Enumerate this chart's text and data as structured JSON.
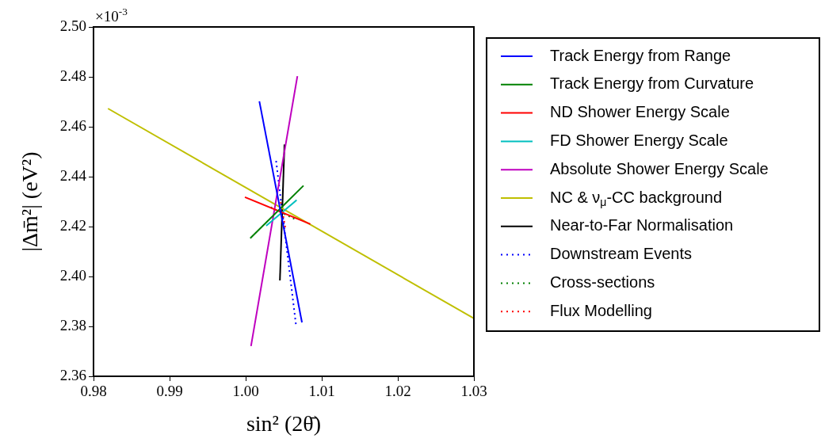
{
  "chart_data": {
    "type": "line",
    "xlabel": "sin² (2θ̄)",
    "ylabel": "|Δm̄²| (eV²)",
    "annotations": [
      "×10$^{-3}$"
    ],
    "xlim": [
      0.98,
      1.03
    ],
    "xticks": [
      {
        "value": 0.98,
        "label": "0.98"
      },
      {
        "value": 0.99,
        "label": "0.99"
      },
      {
        "value": 1.0,
        "label": "1.00"
      },
      {
        "value": 1.01,
        "label": "1.01"
      },
      {
        "value": 1.02,
        "label": "1.02"
      },
      {
        "value": 1.03,
        "label": "1.03"
      }
    ],
    "ylim": [
      2.36,
      2.5
    ],
    "yticks": [
      {
        "value": 2.36,
        "label": "2.36"
      },
      {
        "value": 2.38,
        "label": "2.38"
      },
      {
        "value": 2.4,
        "label": "2.40"
      },
      {
        "value": 2.42,
        "label": "2.42"
      },
      {
        "value": 2.44,
        "label": "2.44"
      },
      {
        "value": 2.46,
        "label": "2.46"
      },
      {
        "value": 2.48,
        "label": "2.48"
      },
      {
        "value": 2.5,
        "label": "2.50"
      }
    ],
    "grid": false,
    "legend": "right",
    "marker": "none",
    "series": [
      {
        "name": "Track Energy from Range",
        "color": "#0000ff",
        "line_style": "solid",
        "x": [
          1.0018,
          1.0074
        ],
        "values": [
          2.4702,
          2.3816
        ]
      },
      {
        "name": "Track Energy from Curvature",
        "color": "#008000",
        "line_style": "solid",
        "x": [
          1.0006,
          1.0076
        ],
        "values": [
          2.4153,
          2.4364
        ]
      },
      {
        "name": "ND Shower Energy Scale",
        "color": "#ff0000",
        "line_style": "solid",
        "x": [
          0.9999,
          1.0085
        ],
        "values": [
          2.4318,
          2.421
        ]
      },
      {
        "name": "FD Shower Energy Scale",
        "color": "#00bfbf",
        "line_style": "solid",
        "x": [
          1.0027,
          1.0067
        ],
        "values": [
          2.4203,
          2.4306
        ]
      },
      {
        "name": "Absolute Shower Energy Scale",
        "color": "#bf00bf",
        "line_style": "solid",
        "x": [
          1.0007,
          1.0068
        ],
        "values": [
          2.3721,
          2.4803
        ]
      },
      {
        "name": "NC & ν$_{μ}$-CC background",
        "color": "#bfbf00",
        "line_style": "solid",
        "x": [
          0.9819,
          1.03
        ],
        "values": [
          2.4673,
          2.3832
        ]
      },
      {
        "name": "Near-to-Far Normalisation",
        "color": "#000000",
        "line_style": "solid",
        "x": [
          1.0051,
          1.0045
        ],
        "values": [
          2.4529,
          2.3984
        ]
      },
      {
        "name": "Downstream Events",
        "color": "#0000ff",
        "line_style": "dotted",
        "x": [
          1.004,
          1.0066
        ],
        "values": [
          2.4463,
          2.3809
        ]
      },
      {
        "name": "Cross-sections",
        "color": "#008000",
        "line_style": "dotted",
        "x": [
          1.0033,
          1.0064
        ],
        "values": [
          2.4277,
          2.4231
        ]
      },
      {
        "name": "Flux Modelling",
        "color": "#ff0000",
        "line_style": "dotted",
        "x": [
          1.0046,
          1.0052
        ],
        "values": [
          2.4298,
          2.4197
        ]
      }
    ]
  }
}
